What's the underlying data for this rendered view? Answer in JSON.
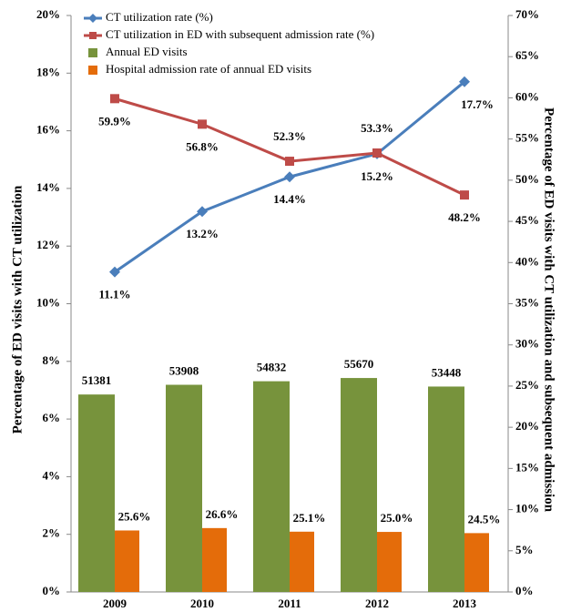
{
  "chart_data": {
    "type": "bar-line",
    "y_label": "Percentage of ED visits with CT utilization",
    "y2_label": "Percentage of ED visits with CT utilization and subsequent admission",
    "categories": [
      "2009",
      "2010",
      "2011",
      "2012",
      "2013"
    ],
    "ylim": [
      0,
      20
    ],
    "yticks": [
      {
        "value": 0,
        "label": "0%"
      },
      {
        "value": 2,
        "label": "2%"
      },
      {
        "value": 4,
        "label": "4%"
      },
      {
        "value": 6,
        "label": "6%"
      },
      {
        "value": 8,
        "label": "8%"
      },
      {
        "value": 10,
        "label": "10%"
      },
      {
        "value": 12,
        "label": "12%"
      },
      {
        "value": 14,
        "label": "14%"
      },
      {
        "value": 16,
        "label": "16%"
      },
      {
        "value": 18,
        "label": "18%"
      },
      {
        "value": 20,
        "label": "20%"
      }
    ],
    "y2lim": [
      0,
      70
    ],
    "y2ticks": [
      {
        "value": 0,
        "label": "0%"
      },
      {
        "value": 5,
        "label": "5%"
      },
      {
        "value": 10,
        "label": "10%"
      },
      {
        "value": 15,
        "label": "15%"
      },
      {
        "value": 20,
        "label": "20%"
      },
      {
        "value": 25,
        "label": "25%"
      },
      {
        "value": 30,
        "label": "30%"
      },
      {
        "value": 35,
        "label": "35%"
      },
      {
        "value": 40,
        "label": "40%"
      },
      {
        "value": 45,
        "label": "45%"
      },
      {
        "value": 50,
        "label": "50%"
      },
      {
        "value": 55,
        "label": "55%"
      },
      {
        "value": 60,
        "label": "60%"
      },
      {
        "value": 65,
        "label": "65%"
      },
      {
        "value": 70,
        "label": "70%"
      }
    ],
    "y3lim": [
      0,
      150000
    ],
    "y4lim": [
      0,
      240
    ],
    "series": [
      {
        "name": "CT utilization rate (%)",
        "kind": "line",
        "marker": "diamond",
        "color": "#4a7ebb",
        "axis": "y",
        "values": [
          11.1,
          13.2,
          14.4,
          15.2,
          17.7
        ],
        "value_labels": [
          "11.1%",
          "13.2%",
          "14.4%",
          "15.2%",
          "17.7%"
        ]
      },
      {
        "name": "CT utilization in ED with subsequent admission rate (%)",
        "kind": "line",
        "marker": "square",
        "color": "#be4b48",
        "axis": "y2",
        "values": [
          59.9,
          56.8,
          52.3,
          53.3,
          48.2
        ],
        "value_labels": [
          "59.9%",
          "56.8%",
          "52.3%",
          "53.3%",
          "48.2%"
        ]
      },
      {
        "name": "Annual ED visits",
        "kind": "bar",
        "color": "#77933c",
        "axis": "y3",
        "values": [
          51381,
          53908,
          54832,
          55670,
          53448
        ]
      },
      {
        "name": "Hospital admission rate of annual ED visits",
        "kind": "bar",
        "color": "#e46c0a",
        "axis": "y4",
        "values": [
          25.6,
          26.6,
          25.1,
          25.0,
          24.5
        ],
        "value_labels": [
          "25.6%",
          "26.6%",
          "25.1%",
          "25.0%",
          "24.5%"
        ]
      }
    ]
  }
}
